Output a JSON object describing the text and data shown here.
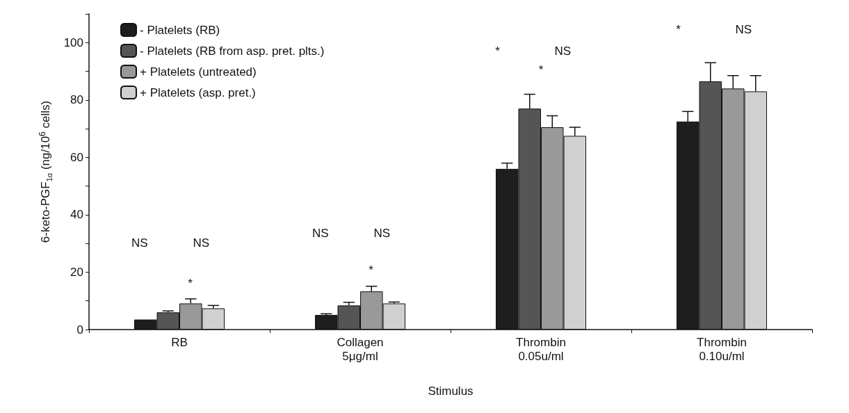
{
  "chart_data": {
    "type": "bar",
    "xlabel": "Stimulus",
    "ylabel": "6-keto-PGF$_{1α}$ (ng/10$^{6}$ cells)",
    "categories": [
      "RB",
      "Collagen\n5μg/ml",
      "Thrombin\n0.05u/ml",
      "Thrombin\n0.10u/ml"
    ],
    "series": [
      {
        "name": "- Platelets (RB)",
        "color": "#1e1e1e",
        "values": [
          3.5,
          5.1,
          56,
          72.5
        ],
        "errors": [
          null,
          0.4,
          2,
          3.5
        ]
      },
      {
        "name": "- Platelets (RB from asp. pret. plts.)",
        "color": "#555555",
        "values": [
          6,
          8.4,
          77,
          86.5
        ],
        "errors": [
          0.5,
          1.1,
          5,
          6.5
        ]
      },
      {
        "name": "+ Platelets (untreated)",
        "color": "#999999",
        "values": [
          9.1,
          13.3,
          70.5,
          84
        ],
        "errors": [
          1.6,
          1.8,
          4,
          4.5
        ]
      },
      {
        "name": "+ Platelets (asp. pret.)",
        "color": "#d0d0d0",
        "values": [
          7.4,
          9.1,
          67.5,
          83
        ],
        "errors": [
          1,
          0.5,
          3,
          5.5
        ]
      }
    ],
    "ylim": [
      0,
      110
    ],
    "yticks": [
      0,
      {
        "value": 10,
        "label": null
      },
      20,
      {
        "value": 30,
        "label": null
      },
      40,
      {
        "value": 50,
        "label": null
      },
      60,
      {
        "value": 70,
        "label": null
      },
      80,
      {
        "value": 90,
        "label": null
      },
      100,
      {
        "value": 110,
        "label": null
      }
    ],
    "annotations": [
      "NS",
      "NS",
      "*",
      "NS",
      "NS",
      "*",
      "*",
      "NS",
      "*",
      "*",
      "NS"
    ],
    "grid": false,
    "legend": "top left"
  }
}
